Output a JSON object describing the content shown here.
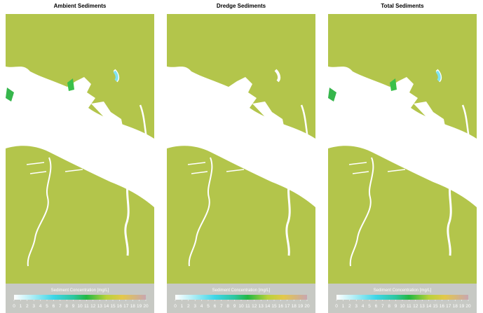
{
  "panels": [
    {
      "title": "Ambient Sediments",
      "colorbar": {
        "label": "Sediment Concentration [mg/L]",
        "ticks": [
          0,
          1,
          2,
          3,
          4,
          5,
          6,
          7,
          8,
          9,
          10,
          11,
          12,
          13,
          14,
          15,
          16,
          17,
          18,
          19,
          20
        ]
      }
    },
    {
      "title": "Dredge Sediments",
      "colorbar": {
        "label": "Sediment Concentration [mg/L]",
        "ticks": [
          0,
          1,
          2,
          3,
          4,
          5,
          6,
          7,
          8,
          9,
          10,
          11,
          12,
          13,
          14,
          15,
          16,
          17,
          18,
          19,
          20
        ]
      }
    },
    {
      "title": "Total Sediments",
      "colorbar": {
        "label": "Sediment Concentration [mg/L]",
        "ticks": [
          0,
          1,
          2,
          3,
          4,
          5,
          6,
          7,
          8,
          9,
          10,
          11,
          12,
          13,
          14,
          15,
          16,
          17,
          18,
          19,
          20
        ]
      }
    }
  ]
}
